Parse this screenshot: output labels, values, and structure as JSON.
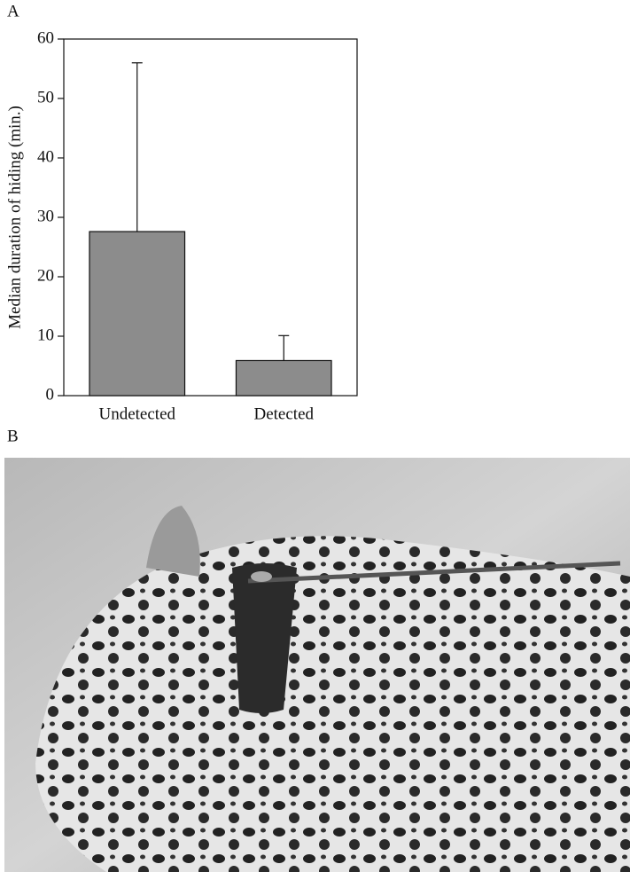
{
  "chart_data": {
    "type": "bar",
    "panel_label": "A",
    "y_label": "Median duration of hiding (min.)",
    "categories": [
      "Undetected",
      "Detected"
    ],
    "values": [
      27.6,
      5.9
    ],
    "errors": [
      28.4,
      4.2
    ],
    "color": "#8c8c8c",
    "ylim": [
      0,
      60
    ],
    "yticks": [
      0,
      10,
      20,
      30,
      40,
      50,
      60
    ]
  },
  "photo": {
    "panel_label": "B"
  }
}
